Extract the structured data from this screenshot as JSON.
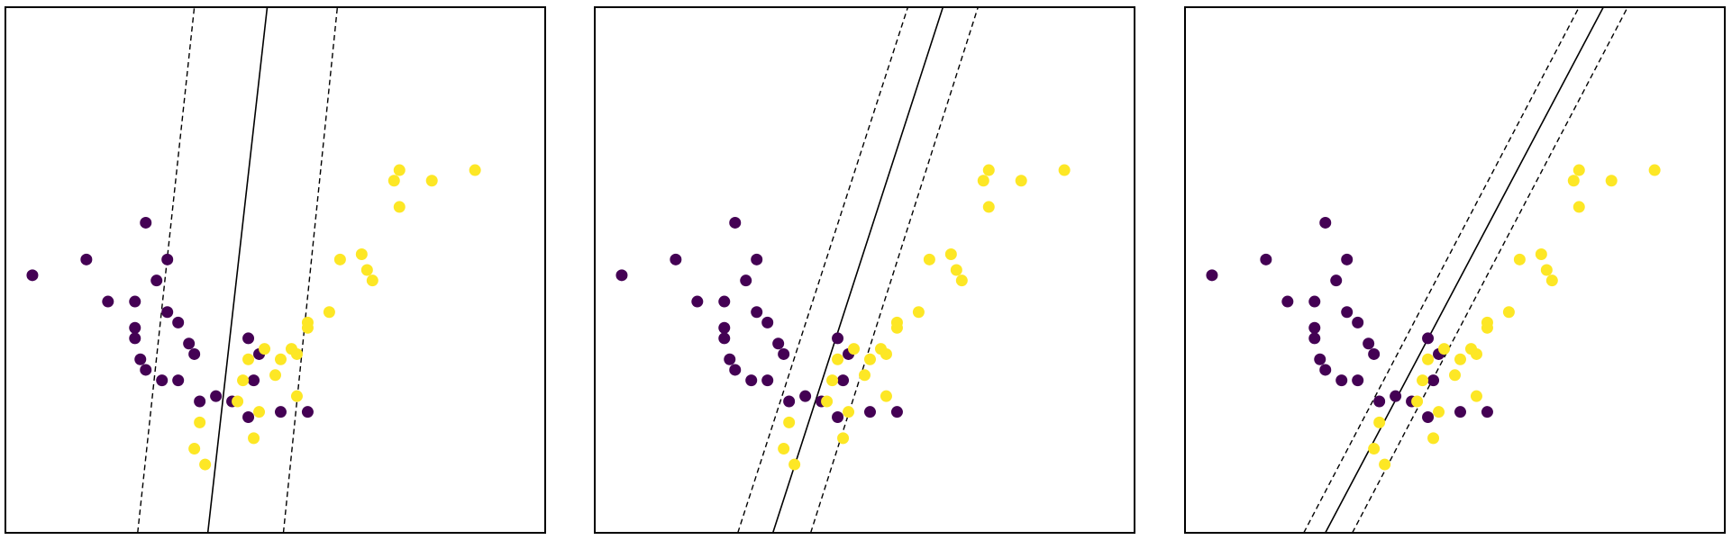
{
  "figure": {
    "background": "#ffffff",
    "frame_color": "#000000"
  },
  "colors": {
    "class0": "#440154",
    "class1": "#fde725",
    "boundary": "#000000",
    "margin": "#000000"
  },
  "chart_data": [
    {
      "type": "scatter",
      "title": "",
      "xlabel": "",
      "ylabel": "",
      "xlim": [
        0,
        10
      ],
      "ylim": [
        0,
        10
      ],
      "grid": false,
      "ticks": false,
      "series": [
        {
          "class": 0,
          "color": "#440154",
          "points": [
            [
              2.6,
              5.9
            ],
            [
              1.5,
              5.2
            ],
            [
              3.0,
              5.2
            ],
            [
              0.5,
              4.9
            ],
            [
              2.8,
              4.8
            ],
            [
              1.9,
              4.4
            ],
            [
              2.4,
              4.4
            ],
            [
              3.0,
              4.2
            ],
            [
              3.2,
              4.0
            ],
            [
              2.4,
              3.9
            ],
            [
              2.4,
              3.7
            ],
            [
              2.5,
              3.3
            ],
            [
              2.6,
              3.1
            ],
            [
              2.9,
              2.9
            ],
            [
              3.2,
              2.9
            ],
            [
              3.4,
              3.6
            ],
            [
              3.5,
              3.4
            ],
            [
              4.5,
              3.7
            ],
            [
              4.7,
              3.4
            ],
            [
              4.6,
              2.9
            ],
            [
              3.6,
              2.5
            ],
            [
              3.9,
              2.6
            ],
            [
              4.2,
              2.5
            ],
            [
              4.5,
              2.2
            ],
            [
              5.1,
              2.3
            ],
            [
              5.6,
              2.3
            ]
          ]
        },
        {
          "class": 1,
          "color": "#fde725",
          "points": [
            [
              7.2,
              6.7
            ],
            [
              7.3,
              6.9
            ],
            [
              7.9,
              6.7
            ],
            [
              8.7,
              6.9
            ],
            [
              6.2,
              5.2
            ],
            [
              6.6,
              5.3
            ],
            [
              6.7,
              5.0
            ],
            [
              6.8,
              4.8
            ],
            [
              7.3,
              6.2
            ],
            [
              6.0,
              4.2
            ],
            [
              5.6,
              4.0
            ],
            [
              5.6,
              3.9
            ],
            [
              5.4,
              3.4
            ],
            [
              4.8,
              3.5
            ],
            [
              4.5,
              3.3
            ],
            [
              5.1,
              3.3
            ],
            [
              5.3,
              3.5
            ],
            [
              5.0,
              3.0
            ],
            [
              4.4,
              2.9
            ],
            [
              4.3,
              2.5
            ],
            [
              4.7,
              2.3
            ],
            [
              5.4,
              2.6
            ],
            [
              4.6,
              1.8
            ],
            [
              3.6,
              2.1
            ],
            [
              3.5,
              1.6
            ],
            [
              3.7,
              1.3
            ]
          ]
        }
      ],
      "decision_boundary": [
        [
          3.75,
          0
        ],
        [
          4.85,
          10
        ]
      ],
      "margins": [
        [
          [
            2.45,
            0
          ],
          [
            3.5,
            10
          ]
        ],
        [
          [
            5.15,
            0
          ],
          [
            6.15,
            10
          ]
        ]
      ]
    },
    {
      "type": "scatter",
      "title": "",
      "xlabel": "",
      "ylabel": "",
      "xlim": [
        0,
        10
      ],
      "ylim": [
        0,
        10
      ],
      "grid": false,
      "ticks": false,
      "series": [
        {
          "class": 0,
          "color": "#440154",
          "points": [
            [
              2.6,
              5.9
            ],
            [
              1.5,
              5.2
            ],
            [
              3.0,
              5.2
            ],
            [
              0.5,
              4.9
            ],
            [
              2.8,
              4.8
            ],
            [
              1.9,
              4.4
            ],
            [
              2.4,
              4.4
            ],
            [
              3.0,
              4.2
            ],
            [
              3.2,
              4.0
            ],
            [
              2.4,
              3.9
            ],
            [
              2.4,
              3.7
            ],
            [
              2.5,
              3.3
            ],
            [
              2.6,
              3.1
            ],
            [
              2.9,
              2.9
            ],
            [
              3.2,
              2.9
            ],
            [
              3.4,
              3.6
            ],
            [
              3.5,
              3.4
            ],
            [
              4.5,
              3.7
            ],
            [
              4.7,
              3.4
            ],
            [
              4.6,
              2.9
            ],
            [
              3.6,
              2.5
            ],
            [
              3.9,
              2.6
            ],
            [
              4.2,
              2.5
            ],
            [
              4.5,
              2.2
            ],
            [
              5.1,
              2.3
            ],
            [
              5.6,
              2.3
            ]
          ]
        },
        {
          "class": 1,
          "color": "#fde725",
          "points": [
            [
              7.2,
              6.7
            ],
            [
              7.3,
              6.9
            ],
            [
              7.9,
              6.7
            ],
            [
              8.7,
              6.9
            ],
            [
              6.2,
              5.2
            ],
            [
              6.6,
              5.3
            ],
            [
              6.7,
              5.0
            ],
            [
              6.8,
              4.8
            ],
            [
              7.3,
              6.2
            ],
            [
              6.0,
              4.2
            ],
            [
              5.6,
              4.0
            ],
            [
              5.6,
              3.9
            ],
            [
              5.4,
              3.4
            ],
            [
              4.8,
              3.5
            ],
            [
              4.5,
              3.3
            ],
            [
              5.1,
              3.3
            ],
            [
              5.3,
              3.5
            ],
            [
              5.0,
              3.0
            ],
            [
              4.4,
              2.9
            ],
            [
              4.3,
              2.5
            ],
            [
              4.7,
              2.3
            ],
            [
              5.4,
              2.6
            ],
            [
              4.6,
              1.8
            ],
            [
              3.6,
              2.1
            ],
            [
              3.5,
              1.6
            ],
            [
              3.7,
              1.3
            ]
          ]
        }
      ],
      "decision_boundary": [
        [
          3.3,
          0
        ],
        [
          6.45,
          10
        ]
      ],
      "margins": [
        [
          [
            2.65,
            0
          ],
          [
            5.8,
            10
          ]
        ],
        [
          [
            4.0,
            0
          ],
          [
            7.1,
            10
          ]
        ]
      ]
    },
    {
      "type": "scatter",
      "title": "",
      "xlabel": "",
      "ylabel": "",
      "xlim": [
        0,
        10
      ],
      "ylim": [
        0,
        10
      ],
      "grid": false,
      "ticks": false,
      "series": [
        {
          "class": 0,
          "color": "#440154",
          "points": [
            [
              2.6,
              5.9
            ],
            [
              1.5,
              5.2
            ],
            [
              3.0,
              5.2
            ],
            [
              0.5,
              4.9
            ],
            [
              2.8,
              4.8
            ],
            [
              1.9,
              4.4
            ],
            [
              2.4,
              4.4
            ],
            [
              3.0,
              4.2
            ],
            [
              3.2,
              4.0
            ],
            [
              2.4,
              3.9
            ],
            [
              2.4,
              3.7
            ],
            [
              2.5,
              3.3
            ],
            [
              2.6,
              3.1
            ],
            [
              2.9,
              2.9
            ],
            [
              3.2,
              2.9
            ],
            [
              3.4,
              3.6
            ],
            [
              3.5,
              3.4
            ],
            [
              4.5,
              3.7
            ],
            [
              4.7,
              3.4
            ],
            [
              4.6,
              2.9
            ],
            [
              3.6,
              2.5
            ],
            [
              3.9,
              2.6
            ],
            [
              4.2,
              2.5
            ],
            [
              4.5,
              2.2
            ],
            [
              5.1,
              2.3
            ],
            [
              5.6,
              2.3
            ]
          ]
        },
        {
          "class": 1,
          "color": "#fde725",
          "points": [
            [
              7.2,
              6.7
            ],
            [
              7.3,
              6.9
            ],
            [
              7.9,
              6.7
            ],
            [
              8.7,
              6.9
            ],
            [
              6.2,
              5.2
            ],
            [
              6.6,
              5.3
            ],
            [
              6.7,
              5.0
            ],
            [
              6.8,
              4.8
            ],
            [
              7.3,
              6.2
            ],
            [
              6.0,
              4.2
            ],
            [
              5.6,
              4.0
            ],
            [
              5.6,
              3.9
            ],
            [
              5.4,
              3.4
            ],
            [
              4.8,
              3.5
            ],
            [
              4.5,
              3.3
            ],
            [
              5.1,
              3.3
            ],
            [
              5.3,
              3.5
            ],
            [
              5.0,
              3.0
            ],
            [
              4.4,
              2.9
            ],
            [
              4.3,
              2.5
            ],
            [
              4.7,
              2.3
            ],
            [
              5.4,
              2.6
            ],
            [
              4.6,
              1.8
            ],
            [
              3.6,
              2.1
            ],
            [
              3.5,
              1.6
            ],
            [
              3.7,
              1.3
            ]
          ]
        }
      ],
      "decision_boundary": [
        [
          2.6,
          0
        ],
        [
          7.75,
          10
        ]
      ],
      "margins": [
        [
          [
            2.2,
            0
          ],
          [
            7.3,
            10
          ]
        ],
        [
          [
            3.1,
            0
          ],
          [
            8.2,
            10
          ]
        ]
      ]
    }
  ]
}
